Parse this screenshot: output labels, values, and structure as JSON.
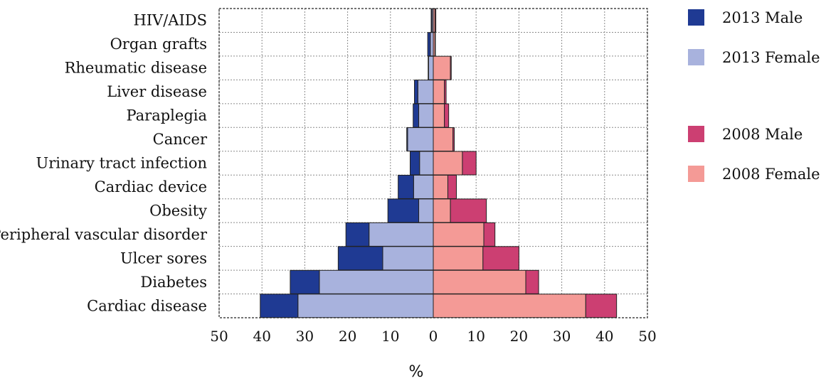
{
  "chart_data": {
    "type": "bar",
    "orientation": "horizontal-population-pyramid",
    "categories": [
      "HIV/AIDS",
      "Organ grafts",
      "Rheumatic disease",
      "Liver disease",
      "Paraplegia",
      "Cancer",
      "Urinary tract infection",
      "Cardiac device",
      "Obesity",
      "Peripheral vascular disorder",
      "Ulcer sores",
      "Diabetes",
      "Cardiac disease"
    ],
    "series": [
      {
        "name": "2013 Male",
        "side": "left",
        "color": "#1f3a93",
        "values": [
          0.2,
          0.6,
          0.1,
          0.8,
          1.3,
          0.2,
          2.2,
          3.6,
          7.2,
          5.4,
          10.4,
          6.8,
          8.8
        ]
      },
      {
        "name": "2013 Female",
        "side": "left",
        "color": "#a8b2dd",
        "values": [
          0.3,
          0.7,
          1.1,
          3.6,
          3.4,
          6.0,
          3.2,
          4.6,
          3.4,
          15.0,
          11.8,
          26.6,
          31.6
        ]
      },
      {
        "name": "2008 Male",
        "side": "right",
        "color": "#cc3f72",
        "values": [
          0.2,
          0.1,
          0.2,
          0.4,
          1.0,
          0.3,
          3.2,
          2.0,
          8.4,
          2.6,
          8.4,
          3.0,
          7.2
        ]
      },
      {
        "name": "2008 Female",
        "side": "right",
        "color": "#f49a96",
        "values": [
          0.4,
          0.4,
          4.0,
          2.6,
          2.6,
          4.6,
          6.8,
          3.4,
          4.0,
          11.8,
          11.6,
          21.6,
          35.6
        ]
      }
    ],
    "xlabel": "%",
    "ylabel": "",
    "xlim": [
      -50,
      50
    ],
    "x_tick_labels": [
      "50",
      "40",
      "30",
      "20",
      "10",
      "0",
      "10",
      "20",
      "30",
      "40",
      "50"
    ],
    "grid": true,
    "legend": "right"
  }
}
